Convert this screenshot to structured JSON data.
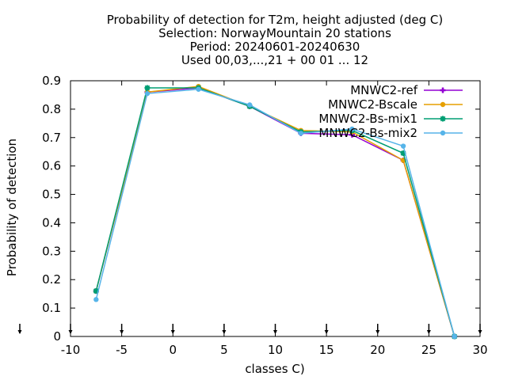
{
  "chart_data": {
    "type": "line",
    "title_lines": [
      "Probability of detection  for T2m, height adjusted (deg C)",
      "Selection: NorwayMountain     20 stations",
      "Period: 20240601-20240630",
      "Used 00,03,...,21 + 00 01 ... 12"
    ],
    "xlabel": "classes C)",
    "ylabel": "Probability of detection",
    "xlim": [
      -10,
      30
    ],
    "ylim": [
      0,
      0.9
    ],
    "xticks": [
      -10,
      -5,
      0,
      5,
      10,
      15,
      20,
      25,
      30
    ],
    "xtick_labels": [
      "-10",
      "-5",
      "0",
      "5",
      "10",
      "15",
      "20",
      "25",
      "30"
    ],
    "yticks": [
      0,
      0.1,
      0.2,
      0.3,
      0.4,
      0.5,
      0.6,
      0.7,
      0.8,
      0.9
    ],
    "ytick_labels": [
      "0",
      "0.1",
      "0.2",
      "0.3",
      "0.4",
      "0.5",
      "0.6",
      "0.7",
      "0.8",
      "0.9"
    ],
    "x": [
      -7.5,
      -2.5,
      2.5,
      7.5,
      12.5,
      17.5,
      22.5,
      27.5
    ],
    "legend_position": "top-right",
    "grid": false,
    "series": [
      {
        "name": "MNWC2-ref",
        "color": "#9400d3",
        "marker": "plus",
        "values": [
          0.16,
          0.86,
          0.875,
          0.81,
          0.715,
          0.71,
          0.62,
          0.0
        ]
      },
      {
        "name": "MNWC2-Bscale",
        "color": "#e69f00",
        "marker": "circle",
        "values": [
          0.16,
          0.86,
          0.88,
          0.81,
          0.725,
          0.72,
          0.62,
          0.0
        ]
      },
      {
        "name": "MNWC2-Bs-mix1",
        "color": "#009e73",
        "marker": "star",
        "values": [
          0.16,
          0.875,
          0.875,
          0.81,
          0.72,
          0.725,
          0.645,
          0.0
        ]
      },
      {
        "name": "MNWC2-Bs-mix2",
        "color": "#56b4e9",
        "marker": "circle",
        "values": [
          0.13,
          0.855,
          0.87,
          0.815,
          0.715,
          0.73,
          0.67,
          0.0
        ]
      }
    ]
  }
}
